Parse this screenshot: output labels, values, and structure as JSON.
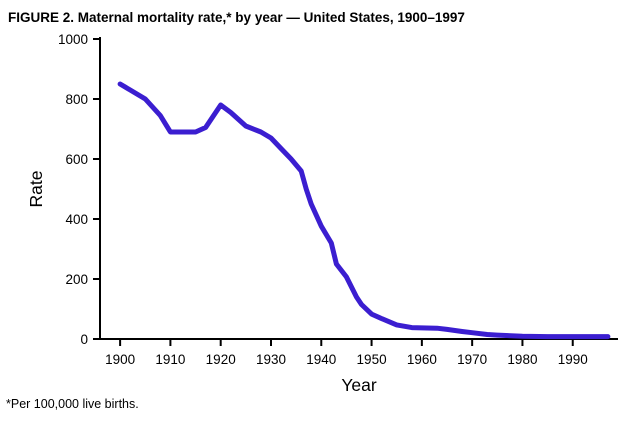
{
  "title": "FIGURE 2. Maternal mortality rate,* by year — United States, 1900–1997",
  "footnote": "*Per 100,000 live births.",
  "chart_data": {
    "type": "line",
    "title": "FIGURE 2. Maternal mortality rate,* by year — United States, 1900–1997",
    "xlabel": "Year",
    "ylabel": "Rate",
    "xlim": [
      1896,
      1999
    ],
    "ylim": [
      0,
      1000
    ],
    "x_ticks": [
      1900,
      1910,
      1920,
      1930,
      1940,
      1950,
      1960,
      1970,
      1980,
      1990
    ],
    "y_ticks": [
      0,
      200,
      400,
      600,
      800,
      1000
    ],
    "grid": false,
    "legend": false,
    "line_color": "#3b1ed0",
    "line_width": 5,
    "series": [
      {
        "name": "Maternal mortality rate per 100,000 live births",
        "x": [
          1900,
          1902,
          1905,
          1908,
          1910,
          1913,
          1915,
          1917,
          1920,
          1922,
          1925,
          1928,
          1930,
          1932,
          1934,
          1936,
          1937,
          1938,
          1940,
          1942,
          1943,
          1945,
          1947,
          1948,
          1950,
          1952,
          1955,
          1958,
          1960,
          1963,
          1965,
          1968,
          1970,
          1973,
          1975,
          1980,
          1985,
          1990,
          1995,
          1997
        ],
        "y": [
          850,
          830,
          800,
          745,
          690,
          690,
          690,
          705,
          780,
          755,
          710,
          690,
          670,
          635,
          600,
          560,
          500,
          450,
          376,
          320,
          250,
          207,
          140,
          115,
          83,
          68,
          47,
          38,
          37,
          36,
          32,
          25,
          21,
          15,
          13,
          9,
          8,
          8,
          8,
          8
        ]
      }
    ]
  }
}
